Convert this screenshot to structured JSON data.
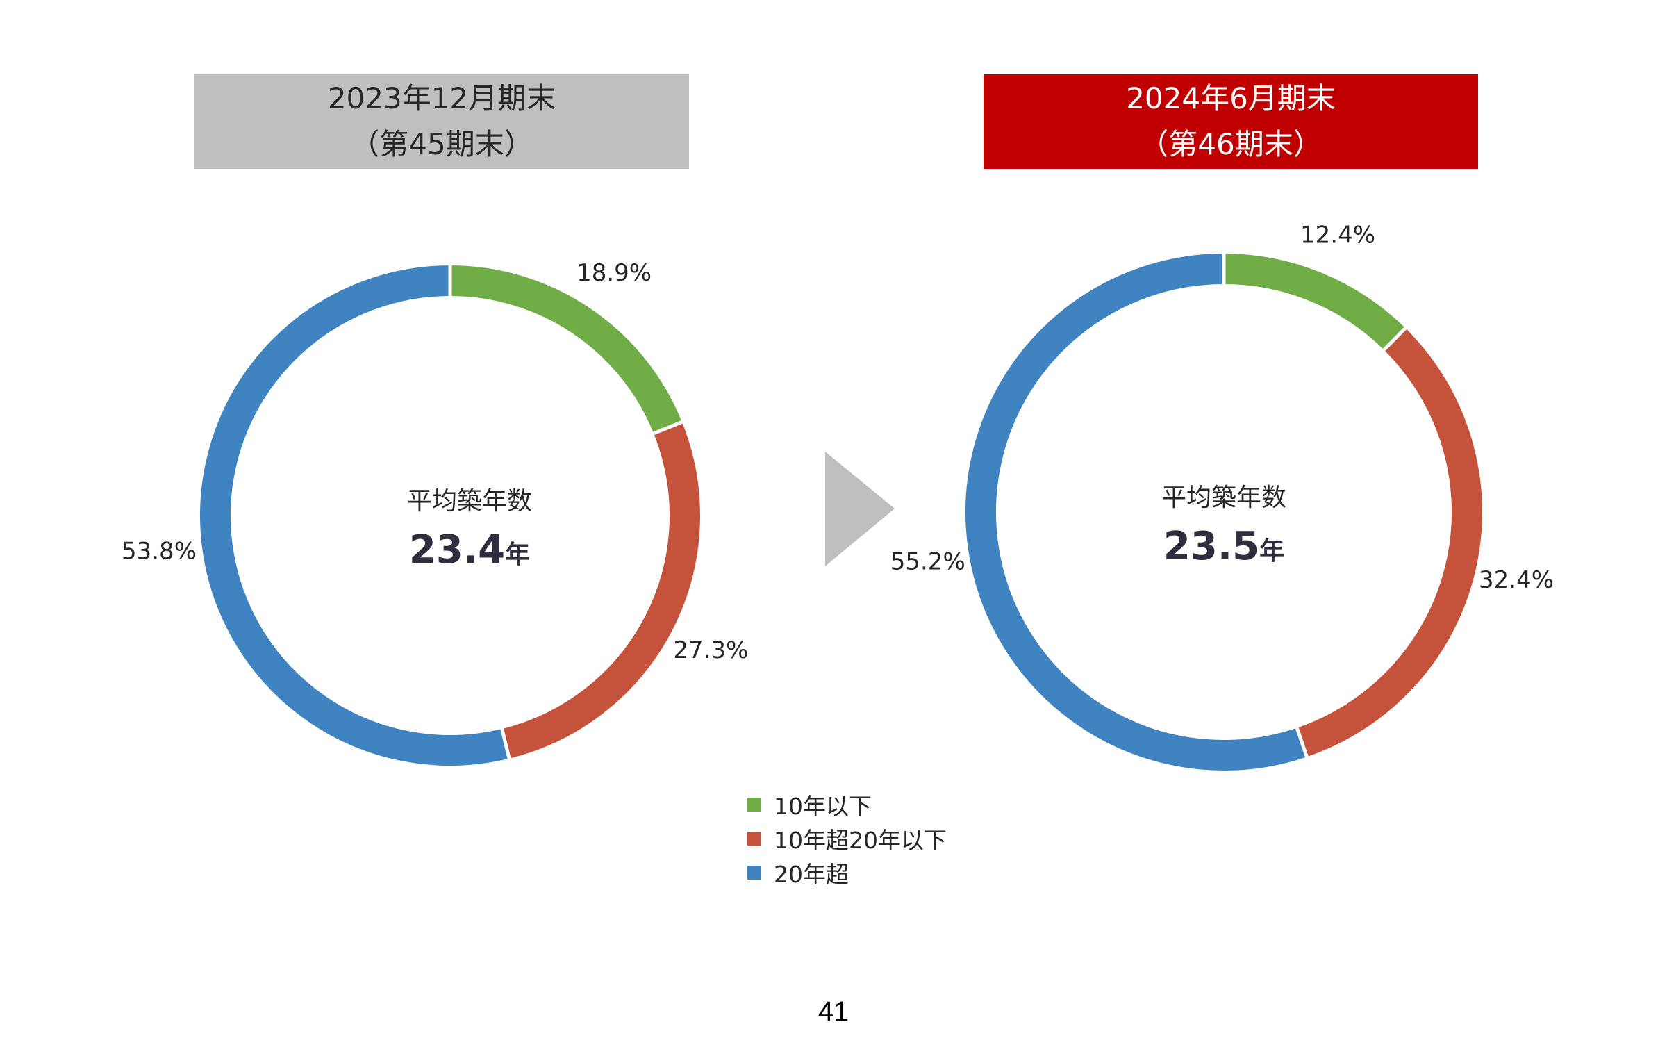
{
  "chart_data": [
    {
      "type": "pie",
      "header": [
        "2023年12月期末",
        "（第45期末）"
      ],
      "header_color": "#bfbfbf",
      "center_label": "平均築年数",
      "center_value": "23.4",
      "center_unit": "年",
      "categories": [
        "10年以下",
        "10年超20年以下",
        "20年超"
      ],
      "values": [
        18.9,
        27.3,
        53.8
      ],
      "value_labels": [
        "18.9%",
        "27.3%",
        "53.8%"
      ]
    },
    {
      "type": "pie",
      "header": [
        "2024年6月期末",
        "（第46期末）"
      ],
      "header_color": "#c00000",
      "center_label": "平均築年数",
      "center_value": "23.5",
      "center_unit": "年",
      "categories": [
        "10年以下",
        "10年超20年以下",
        "20年超"
      ],
      "values": [
        12.4,
        32.4,
        55.2
      ],
      "value_labels": [
        "12.4%",
        "32.4%",
        "55.2%"
      ]
    }
  ],
  "legend": [
    {
      "label": "10年以下",
      "color": "#70ad47"
    },
    {
      "label": "10年超20年以下",
      "color": "#c5533b"
    },
    {
      "label": "20年超",
      "color": "#3f84c0"
    }
  ],
  "arrow_color": "#bfbfbf",
  "page_number": "41"
}
